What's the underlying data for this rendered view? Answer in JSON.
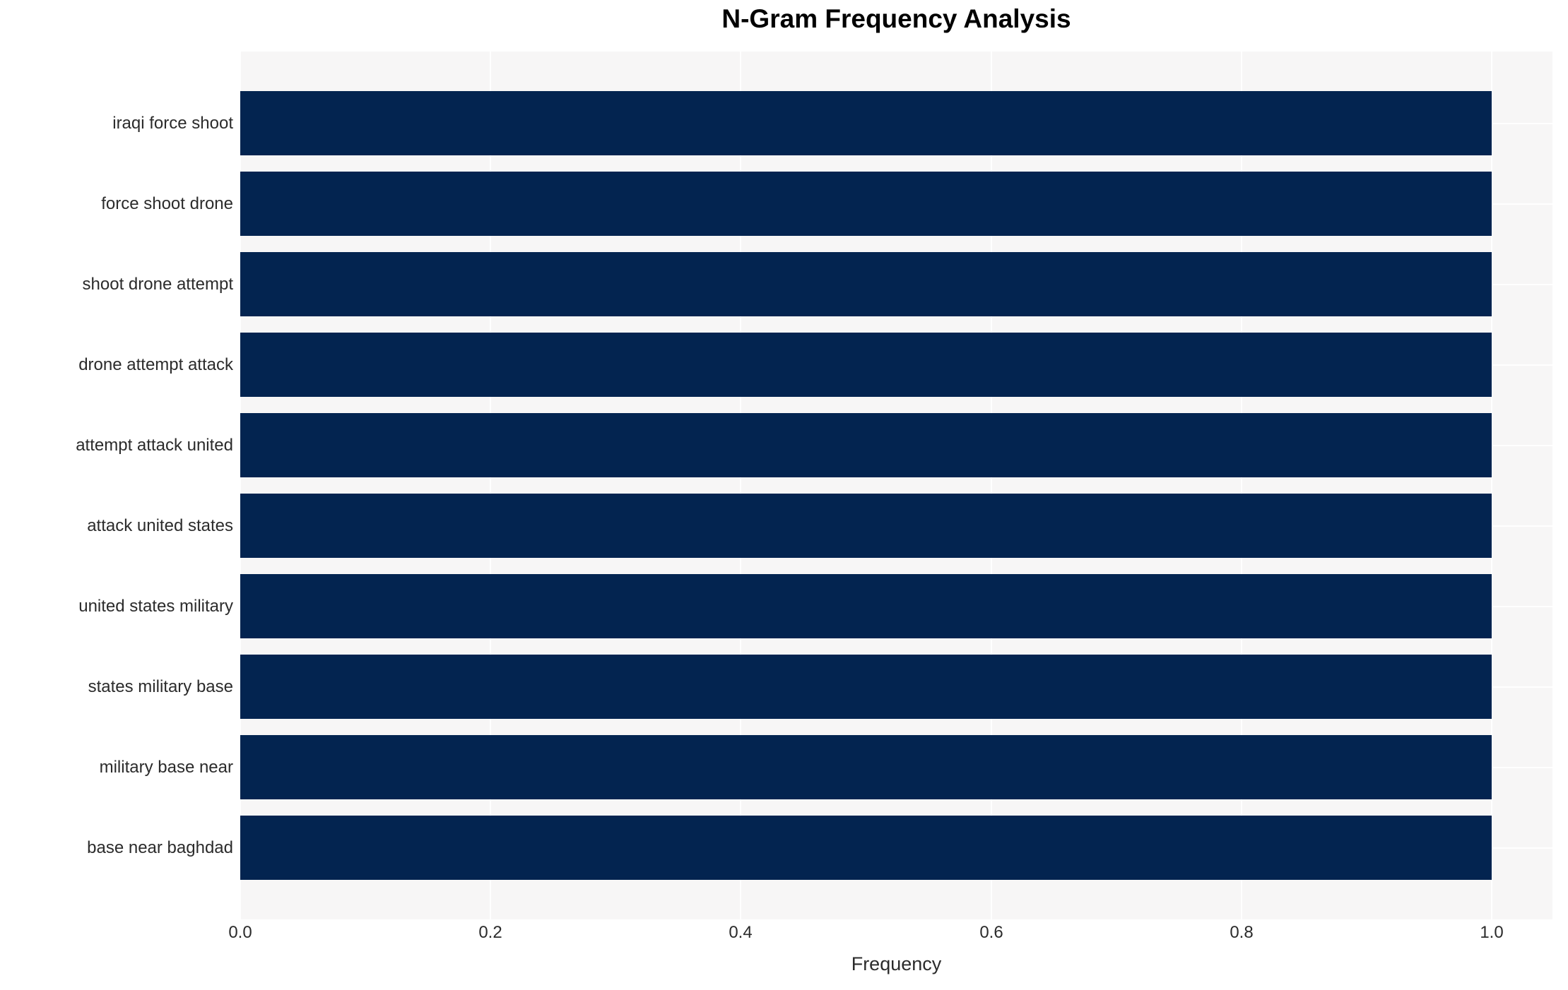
{
  "chart_data": {
    "type": "bar",
    "orientation": "horizontal",
    "title": "N-Gram Frequency Analysis",
    "xlabel": "Frequency",
    "ylabel": "",
    "categories": [
      "iraqi force shoot",
      "force shoot drone",
      "shoot drone attempt",
      "drone attempt attack",
      "attempt attack united",
      "attack united states",
      "united states military",
      "states military base",
      "military base near",
      "base near baghdad"
    ],
    "values": [
      1.0,
      1.0,
      1.0,
      1.0,
      1.0,
      1.0,
      1.0,
      1.0,
      1.0,
      1.0
    ],
    "xticks": [
      "0.0",
      "0.2",
      "0.4",
      "0.6",
      "0.8",
      "1.0"
    ],
    "xtick_values": [
      0.0,
      0.2,
      0.4,
      0.6,
      0.8,
      1.0
    ],
    "xlim": [
      0.0,
      1.0485
    ],
    "grid": true,
    "legend": "none",
    "colors": {
      "bar": "#032450",
      "plot_background": "#f7f6f6",
      "grid_line": "#ffffff",
      "tick_text": "#2b2b2b",
      "title_text": "#000000"
    }
  }
}
